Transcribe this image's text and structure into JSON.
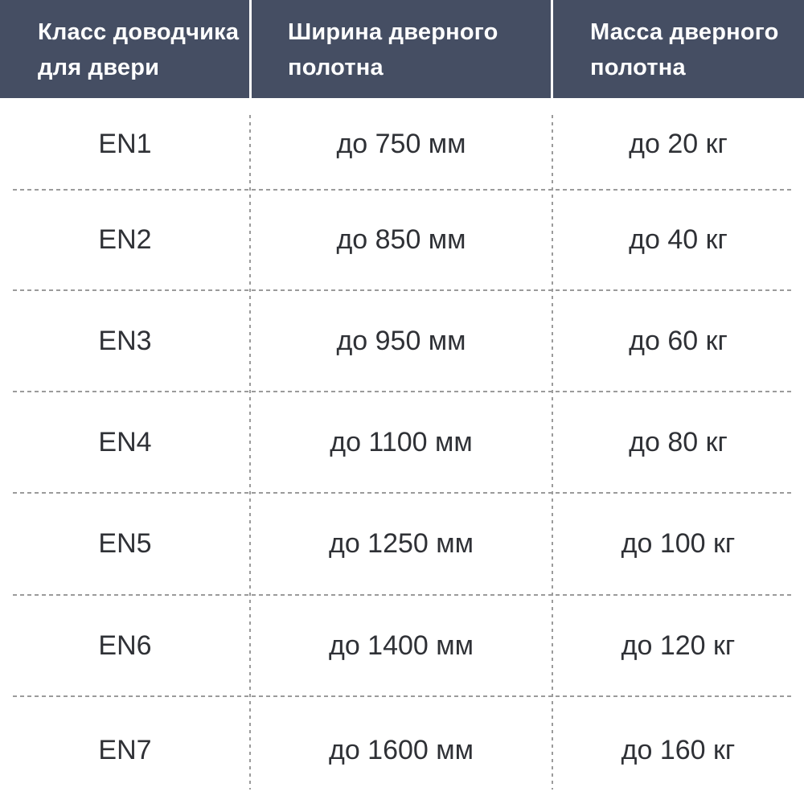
{
  "colors": {
    "header_bg": "#454e63",
    "header_text": "#ffffff",
    "body_text": "#2f3136",
    "dashed_divider": "#9b9b9b",
    "header_divider": "#ffffff",
    "background": "#ffffff"
  },
  "header": {
    "columns": [
      {
        "line1": "Класс доводчика",
        "line2": "для двери"
      },
      {
        "line1": "Ширина дверного",
        "line2": "полотна"
      },
      {
        "line1": "Масса дверного",
        "line2": "полотна"
      }
    ]
  },
  "chart_data": {
    "type": "table",
    "columns": [
      "Класс доводчика для двери",
      "Ширина дверного полотна",
      "Масса дверного полотна"
    ],
    "rows": [
      [
        "EN1",
        "до 750 мм",
        "до 20 кг"
      ],
      [
        "EN2",
        "до 850 мм",
        "до 40 кг"
      ],
      [
        "EN3",
        "до 950 мм",
        "до 60 кг"
      ],
      [
        "EN4",
        "до 1100 мм",
        "до 80 кг"
      ],
      [
        "EN5",
        "до 1250 мм",
        "до 100 кг"
      ],
      [
        "EN6",
        "до 1400 мм",
        "до 120 кг"
      ],
      [
        "EN7",
        "до 1600 мм",
        "до 160 кг"
      ]
    ]
  }
}
